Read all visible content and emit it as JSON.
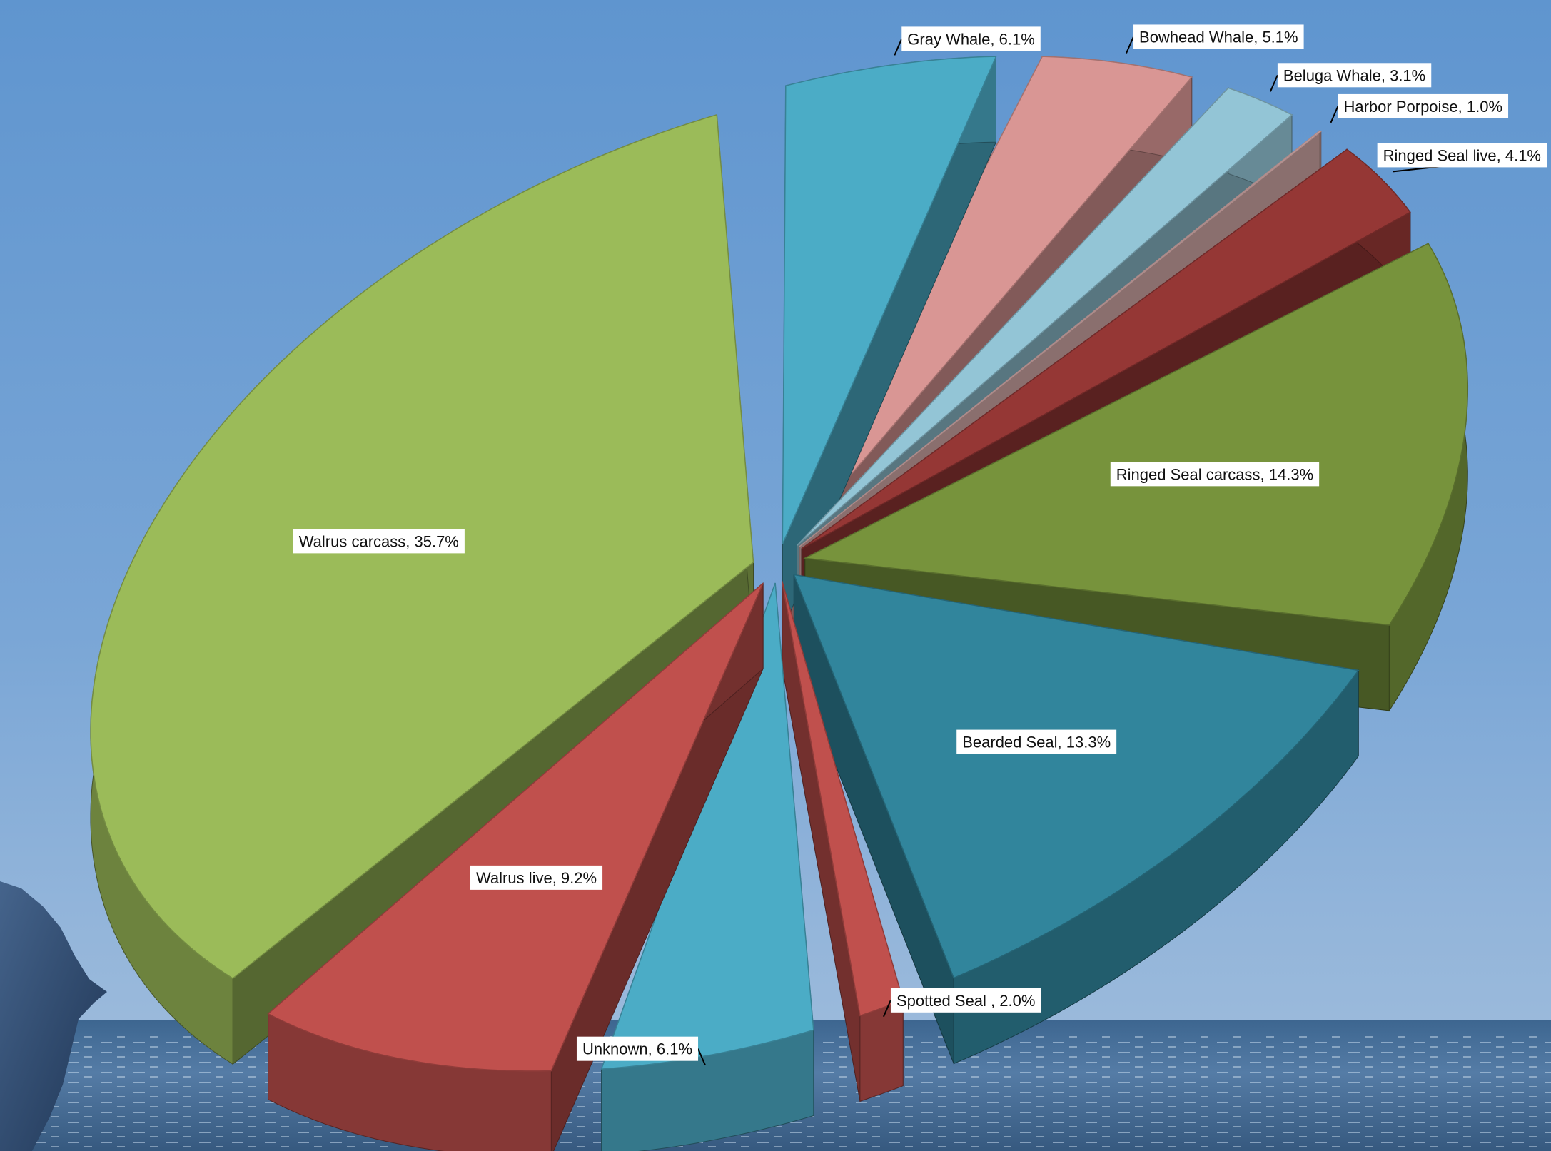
{
  "chart_data": {
    "type": "pie",
    "style": "3d-exploded",
    "title": "",
    "unit": "%",
    "background": "ocean-sky-photo",
    "slices": [
      {
        "label": "Gray Whale, 6.1%",
        "name": "Gray Whale",
        "value": 6.1,
        "color": "#4bacc6"
      },
      {
        "label": "Bowhead Whale, 5.1%",
        "name": "Bowhead Whale",
        "value": 5.1,
        "color": "#d99694"
      },
      {
        "label": "Beluga Whale, 3.1%",
        "name": "Beluga Whale",
        "value": 3.1,
        "color": "#93c5d6"
      },
      {
        "label": "Harbor Porpoise, 1.0%",
        "name": "Harbor Porpoise",
        "value": 1.0,
        "color": "#e6b9b8"
      },
      {
        "label": "Ringed Seal live, 4.1%",
        "name": "Ringed Seal live",
        "value": 4.1,
        "color": "#953735"
      },
      {
        "label": "Ringed Seal carcass, 14.3%",
        "name": "Ringed Seal carcass",
        "value": 14.3,
        "color": "#77933c"
      },
      {
        "label": "Bearded Seal, 13.3%",
        "name": "Bearded Seal",
        "value": 13.3,
        "color": "#31859c"
      },
      {
        "label": "Spotted Seal , 2.0%",
        "name": "Spotted Seal",
        "value": 2.0,
        "color": "#c0504d"
      },
      {
        "label": "Unknown, 6.1%",
        "name": "Unknown",
        "value": 6.1,
        "color": "#4bacc6"
      },
      {
        "label": "Walrus live, 9.2%",
        "name": "Walrus live",
        "value": 9.2,
        "color": "#c0504d"
      },
      {
        "label": "Walrus carcass, 35.7%",
        "name": "Walrus carcass",
        "value": 35.7,
        "color": "#9bbb59"
      }
    ]
  }
}
